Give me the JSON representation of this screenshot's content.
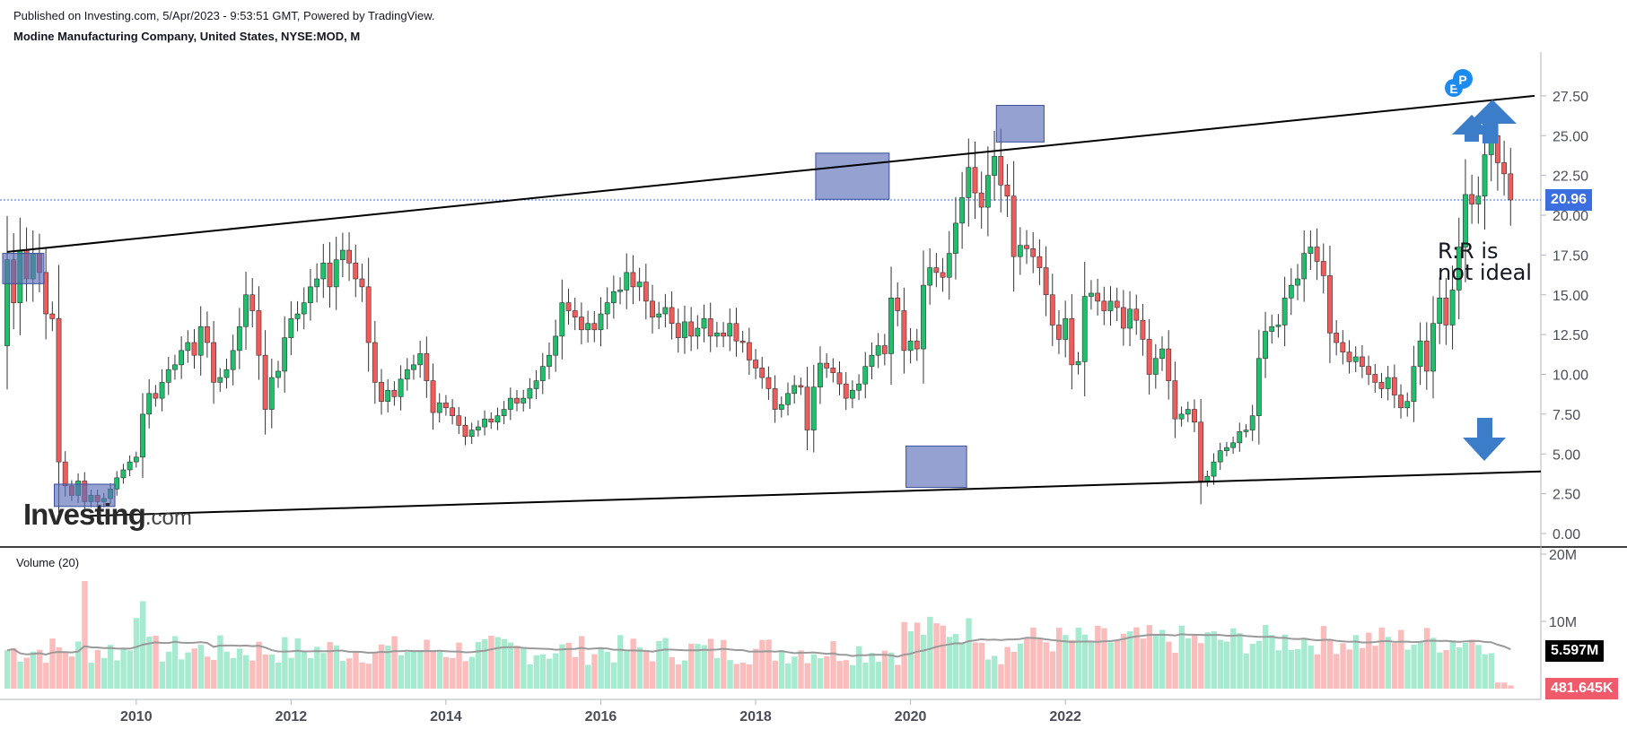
{
  "header": {
    "published": "Published on Investing.com, 5/Apr/2023 - 9:53:51 GMT, Powered by TradingView.",
    "instrument": "Modine Manufacturing Company, United States, NYSE:MOD, M"
  },
  "logo": {
    "main": "Investing",
    "suffix": ".com"
  },
  "annotation": {
    "text": "R:R is\nnot ideal"
  },
  "markers": {
    "earnings_letter": "E",
    "dividend_letter": "P"
  },
  "price_tag": {
    "value": "20.96",
    "color": "#3b6fe0"
  },
  "volume": {
    "label": "Volume (20)",
    "last_ma_tag": "5.597M",
    "last_volume_tag": "481.645K",
    "ma_tag_color": "#000000",
    "vol_tag_color": "#f05b6b",
    "ticks": [
      "20M",
      "10M"
    ]
  },
  "colors": {
    "up": "#1fbf6b",
    "down": "#f05b5b",
    "up_volume": "#a6ead0",
    "down_volume": "#fbbcbc",
    "box": "#5a6fb8",
    "arrow": "#3b7dc9",
    "trendline": "#000000"
  },
  "chart_data": {
    "type": "candlestick",
    "interval": "monthly",
    "ylim": [
      0,
      28
    ],
    "yticks": [
      0,
      2.5,
      5,
      7.5,
      10,
      12.5,
      15,
      17.5,
      20,
      22.5,
      25,
      27.5
    ],
    "ytick_labels": [
      "0.00",
      "2.50",
      "5.00",
      "7.50",
      "10.00",
      "12.50",
      "15.00",
      "17.50",
      "20.00",
      "22.50",
      "25.00",
      "27.50"
    ],
    "xticks": [
      "2010",
      "2012",
      "2014",
      "2016",
      "2018",
      "2020",
      "2022"
    ],
    "last_close": 20.96,
    "close": [
      17.2,
      14.5,
      17.8,
      16.0,
      17.6,
      16.4,
      13.8,
      13.5,
      4.5,
      3.0,
      2.4,
      3.3,
      2.0,
      2.4,
      2.0,
      2.2,
      2.8,
      3.5,
      4.0,
      4.5,
      4.8,
      7.5,
      8.8,
      8.5,
      9.5,
      10.3,
      10.6,
      11.5,
      12.0,
      11.2,
      13.0,
      12.0,
      9.5,
      9.8,
      10.3,
      11.5,
      13.0,
      15.0,
      14.0,
      11.2,
      7.8,
      9.8,
      10.2,
      12.3,
      13.5,
      13.8,
      14.5,
      15.5,
      16.0,
      17.0,
      15.5,
      17.2,
      17.8,
      17.0,
      16.0,
      15.5,
      12.0,
      9.5,
      8.3,
      9.0,
      8.6,
      9.7,
      10.3,
      10.6,
      11.3,
      9.6,
      7.6,
      8.2,
      7.9,
      7.4,
      6.8,
      6.1,
      6.5,
      6.7,
      7.2,
      7.0,
      7.4,
      7.8,
      8.5,
      8.2,
      8.5,
      9.1,
      9.6,
      10.5,
      11.2,
      12.4,
      14.5,
      14.0,
      13.6,
      12.8,
      13.2,
      12.8,
      13.8,
      14.5,
      15.2,
      15.3,
      16.4,
      15.5,
      15.8,
      14.6,
      13.6,
      13.8,
      14.2,
      13.2,
      12.3,
      13.3,
      12.4,
      12.9,
      13.5,
      12.4,
      12.6,
      12.4,
      13.2,
      12.1,
      12.0,
      10.9,
      10.4,
      9.8,
      9.1,
      7.8,
      8.1,
      8.8,
      9.3,
      9.2,
      6.5,
      9.2,
      10.7,
      10.4,
      10.1,
      9.4,
      8.5,
      9.0,
      9.4,
      10.5,
      11.2,
      11.8,
      11.3,
      14.8,
      14.0,
      11.5,
      12.1,
      11.6,
      15.6,
      16.7,
      16.4,
      16.1,
      17.6,
      19.5,
      21.1,
      23.0,
      21.4,
      20.5,
      22.5,
      23.7,
      21.9,
      21.2,
      17.4,
      18.1,
      17.9,
      17.4,
      16.7,
      15.0,
      13.1,
      12.2,
      13.5,
      10.6,
      10.8,
      14.9,
      15.1,
      14.6,
      14.0,
      14.6,
      14.2,
      12.9,
      14.1,
      13.4,
      12.2,
      10.0,
      11.0,
      11.6,
      9.6,
      7.2,
      7.5,
      7.8,
      7.0,
      3.3,
      3.6,
      4.5,
      5.2,
      5.4,
      5.7,
      6.4,
      6.5,
      7.4,
      11.0,
      12.7,
      13.0,
      13.1,
      14.8,
      15.6,
      16.0,
      17.6,
      18.0,
      17.1,
      16.2,
      12.6,
      12.0,
      11.4,
      10.8,
      11.1,
      10.5,
      10.0,
      9.5,
      9.1,
      9.8,
      8.7,
      7.9,
      8.3,
      10.5,
      12.1,
      10.2,
      13.2,
      14.8,
      13.1,
      15.3,
      18.0,
      21.3,
      20.7,
      21.2,
      23.8,
      25.0,
      23.3,
      22.6,
      20.96
    ]
  }
}
